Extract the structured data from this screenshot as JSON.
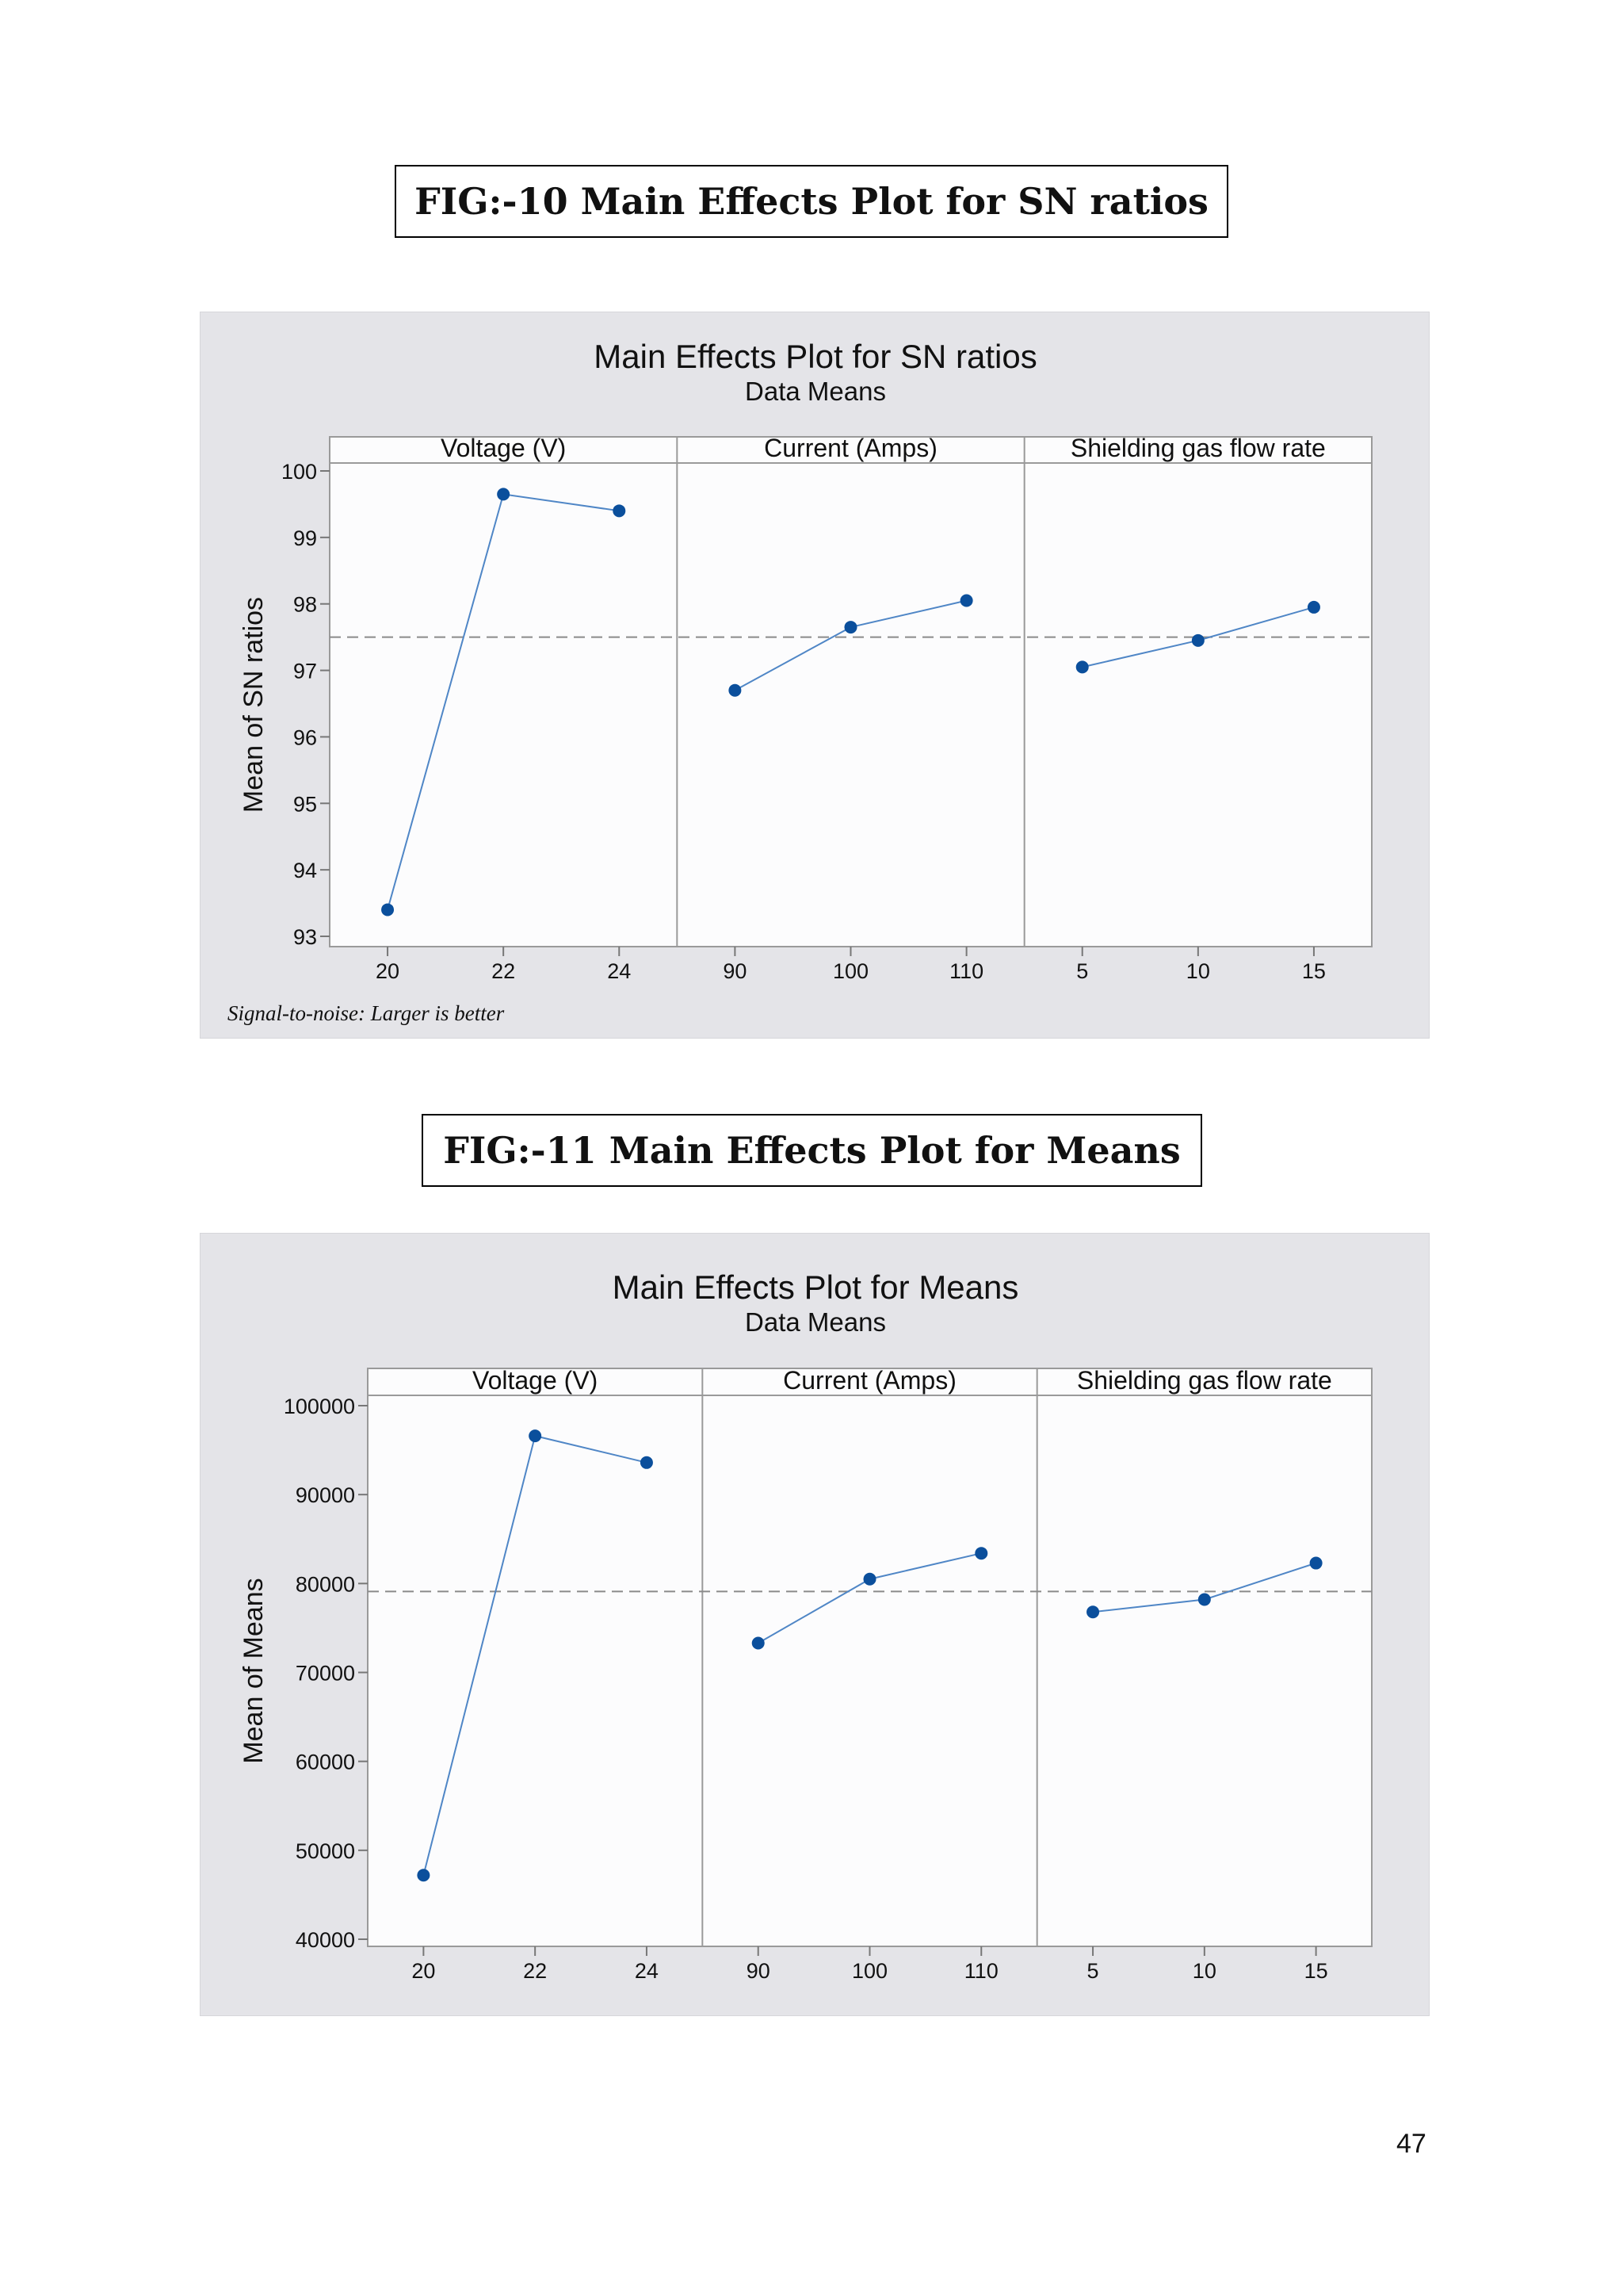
{
  "figures": {
    "fig10_caption": "FIG:-10 Main Effects Plot for SN ratios",
    "fig11_caption": "FIG:-11 Main Effects Plot for Means"
  },
  "page_number": "47",
  "chart_data": [
    {
      "type": "line",
      "title": "Main Effects Plot for SN ratios",
      "subtitle": "Data Means",
      "ylabel": "Mean of SN ratios",
      "ylim": [
        93,
        100
      ],
      "yticks": [
        93,
        94,
        95,
        96,
        97,
        98,
        99,
        100
      ],
      "ytick_labels": [
        "93",
        "94",
        "95",
        "96",
        "97",
        "98",
        "99",
        "100"
      ],
      "reference_line": 97.5,
      "footnote": "Signal-to-noise: Larger is better",
      "colors": {
        "series": "#0b4f9c",
        "line": "#4f86c6",
        "reference": "#8a8a8a"
      },
      "grid": false,
      "panels": [
        {
          "name": "Voltage (V)",
          "x": [
            "20",
            "22",
            "24"
          ],
          "values": [
            93.4,
            99.65,
            99.4
          ]
        },
        {
          "name": "Current (Amps)",
          "x": [
            "90",
            "100",
            "110"
          ],
          "values": [
            96.7,
            97.65,
            98.05
          ]
        },
        {
          "name": "Shielding gas flow rate",
          "x": [
            "5",
            "10",
            "15"
          ],
          "values": [
            97.05,
            97.45,
            97.95
          ]
        }
      ]
    },
    {
      "type": "line",
      "title": "Main Effects Plot for Means",
      "subtitle": "Data Means",
      "ylabel": "Mean of Means",
      "ylim": [
        40000,
        100000
      ],
      "yticks": [
        40000,
        50000,
        60000,
        70000,
        80000,
        90000,
        100000
      ],
      "ytick_labels": [
        "40000",
        "50000",
        "60000",
        "70000",
        "80000",
        "90000",
        "100000"
      ],
      "reference_line": 79100,
      "footnote": "",
      "colors": {
        "series": "#0b4f9c",
        "line": "#4f86c6",
        "reference": "#8a8a8a"
      },
      "grid": false,
      "panels": [
        {
          "name": "Voltage (V)",
          "x": [
            "20",
            "22",
            "24"
          ],
          "values": [
            47200,
            96600,
            93600
          ]
        },
        {
          "name": "Current (Amps)",
          "x": [
            "90",
            "100",
            "110"
          ],
          "values": [
            73300,
            80500,
            83400
          ]
        },
        {
          "name": "Shielding gas flow rate",
          "x": [
            "5",
            "10",
            "15"
          ],
          "values": [
            76800,
            78200,
            82300
          ]
        }
      ]
    }
  ]
}
